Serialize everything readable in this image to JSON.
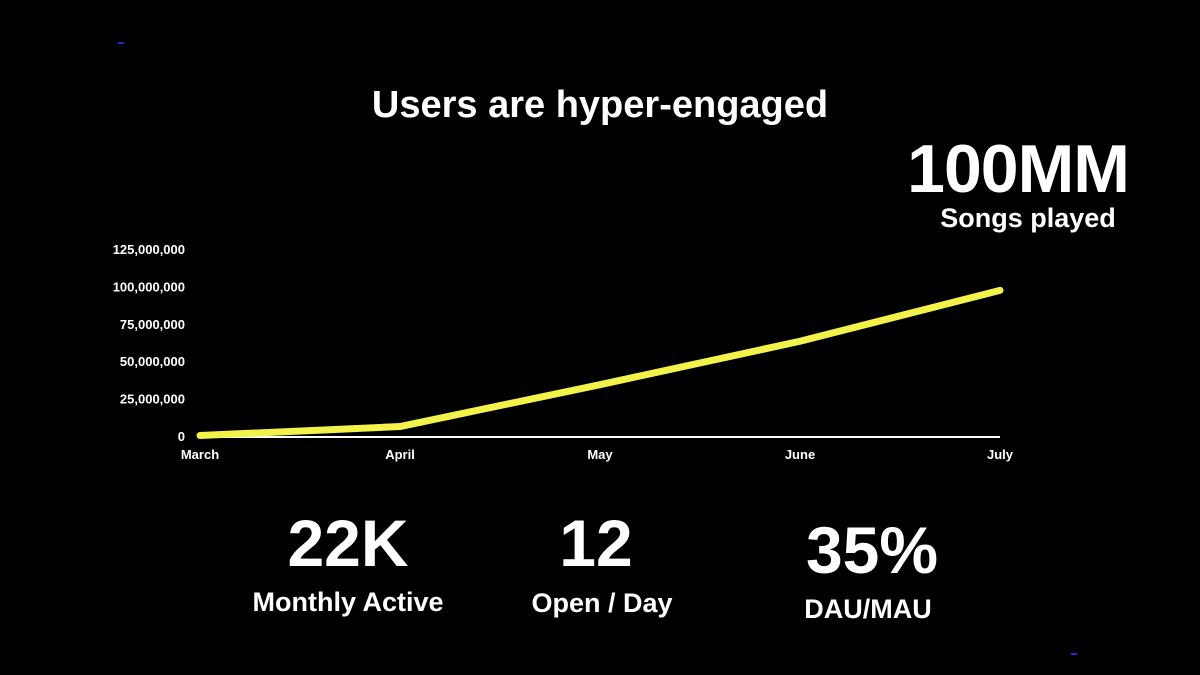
{
  "slide": {
    "title": "Users are hyper-engaged",
    "background": "#000000",
    "text_color": "#ffffff"
  },
  "hero_stat": {
    "value": "100MM",
    "label": "Songs played"
  },
  "chart_data": {
    "type": "line",
    "categories": [
      "March",
      "April",
      "May",
      "June",
      "July"
    ],
    "series": [
      {
        "values": [
          1000000,
          7000000,
          35000000,
          64000000,
          98000000
        ],
        "color": "#f2f24a"
      }
    ],
    "y_ticks": [
      0,
      25000000,
      50000000,
      75000000,
      100000000,
      125000000
    ],
    "y_tick_labels": [
      "0",
      "25,000,000",
      "50,000,000",
      "75,000,000",
      "100,000,000",
      "125,000,000"
    ],
    "ylim": [
      0,
      125000000
    ],
    "grid": false,
    "title": "",
    "xlabel": "",
    "ylabel": ""
  },
  "stats": [
    {
      "value": "22K",
      "label": "Monthly Active"
    },
    {
      "value": "12",
      "label": "Open / Day"
    },
    {
      "value": "35%",
      "label": "DAU/MAU"
    }
  ]
}
